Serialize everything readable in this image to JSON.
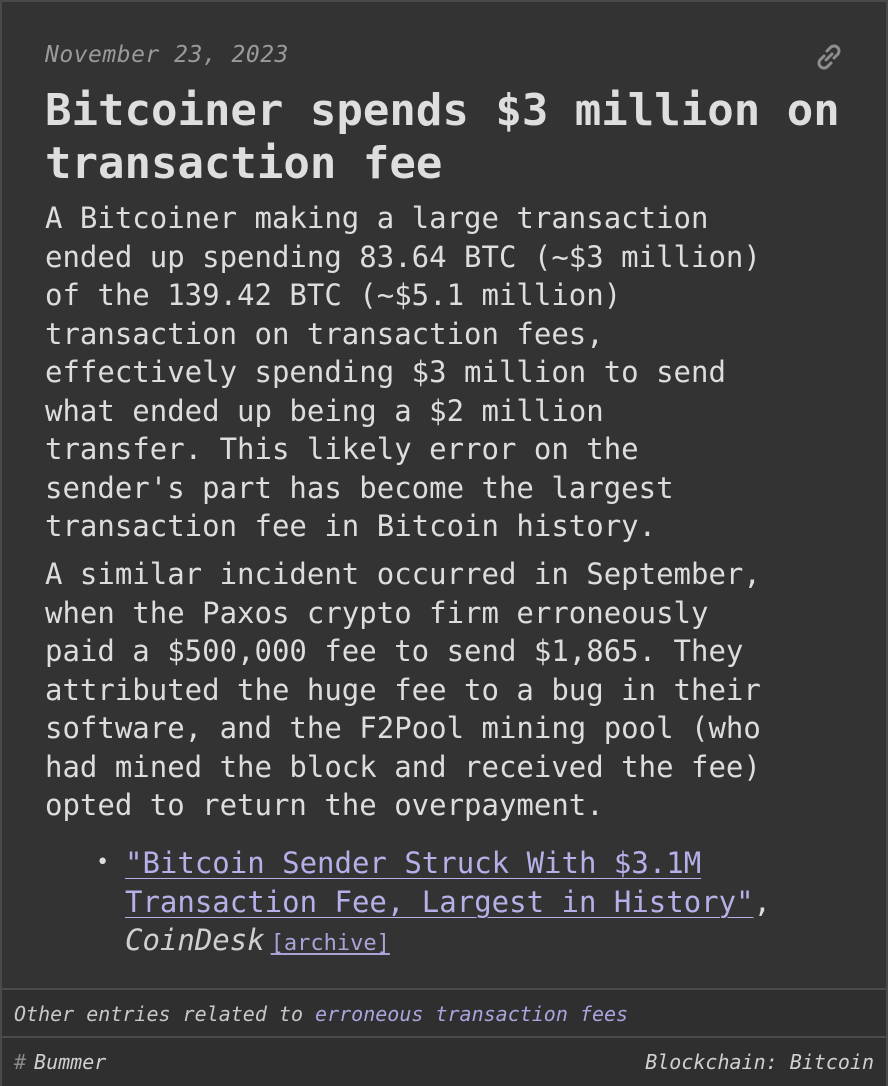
{
  "entry": {
    "date": "November 23, 2023",
    "title": "Bitcoiner spends $3 million on transaction fee",
    "paragraphs": [
      "A Bitcoiner making a large transaction\nended up spending 83.64 BTC (~$3 million)\nof the 139.42 BTC (~$5.1 million)\ntransaction on transaction fees,\neffectively spending $3 million to send\nwhat ended up being a $2 million\ntransfer. This likely error on the\nsender's part has become the largest\ntransaction fee in Bitcoin history.",
      "A similar incident occurred in September,\nwhen the Paxos crypto firm erroneously\npaid a $500,000 fee to send $1,865. They\nattributed the huge fee to a bug in their\nsoftware, and the F2Pool mining pool (who\nhad mined the block and received the fee)\nopted to return the overpayment."
    ],
    "source": {
      "bullet": "•",
      "link_text": "\"Bitcoin Sender Struck With $3.1M Transaction Fee, Largest in History\"",
      "comma": ",",
      "publisher": "CoinDesk",
      "archive_label": "[archive]"
    },
    "link_icon": "link-icon"
  },
  "related": {
    "prefix": "Other entries related to ",
    "link_text": "erroneous transaction fees"
  },
  "tags": {
    "hash": "#",
    "left": "Bummer",
    "right": "Blockchain: Bitcoin"
  },
  "colors": {
    "background": "#333333",
    "link": "#b5b0e8",
    "text": "#dddddd"
  }
}
